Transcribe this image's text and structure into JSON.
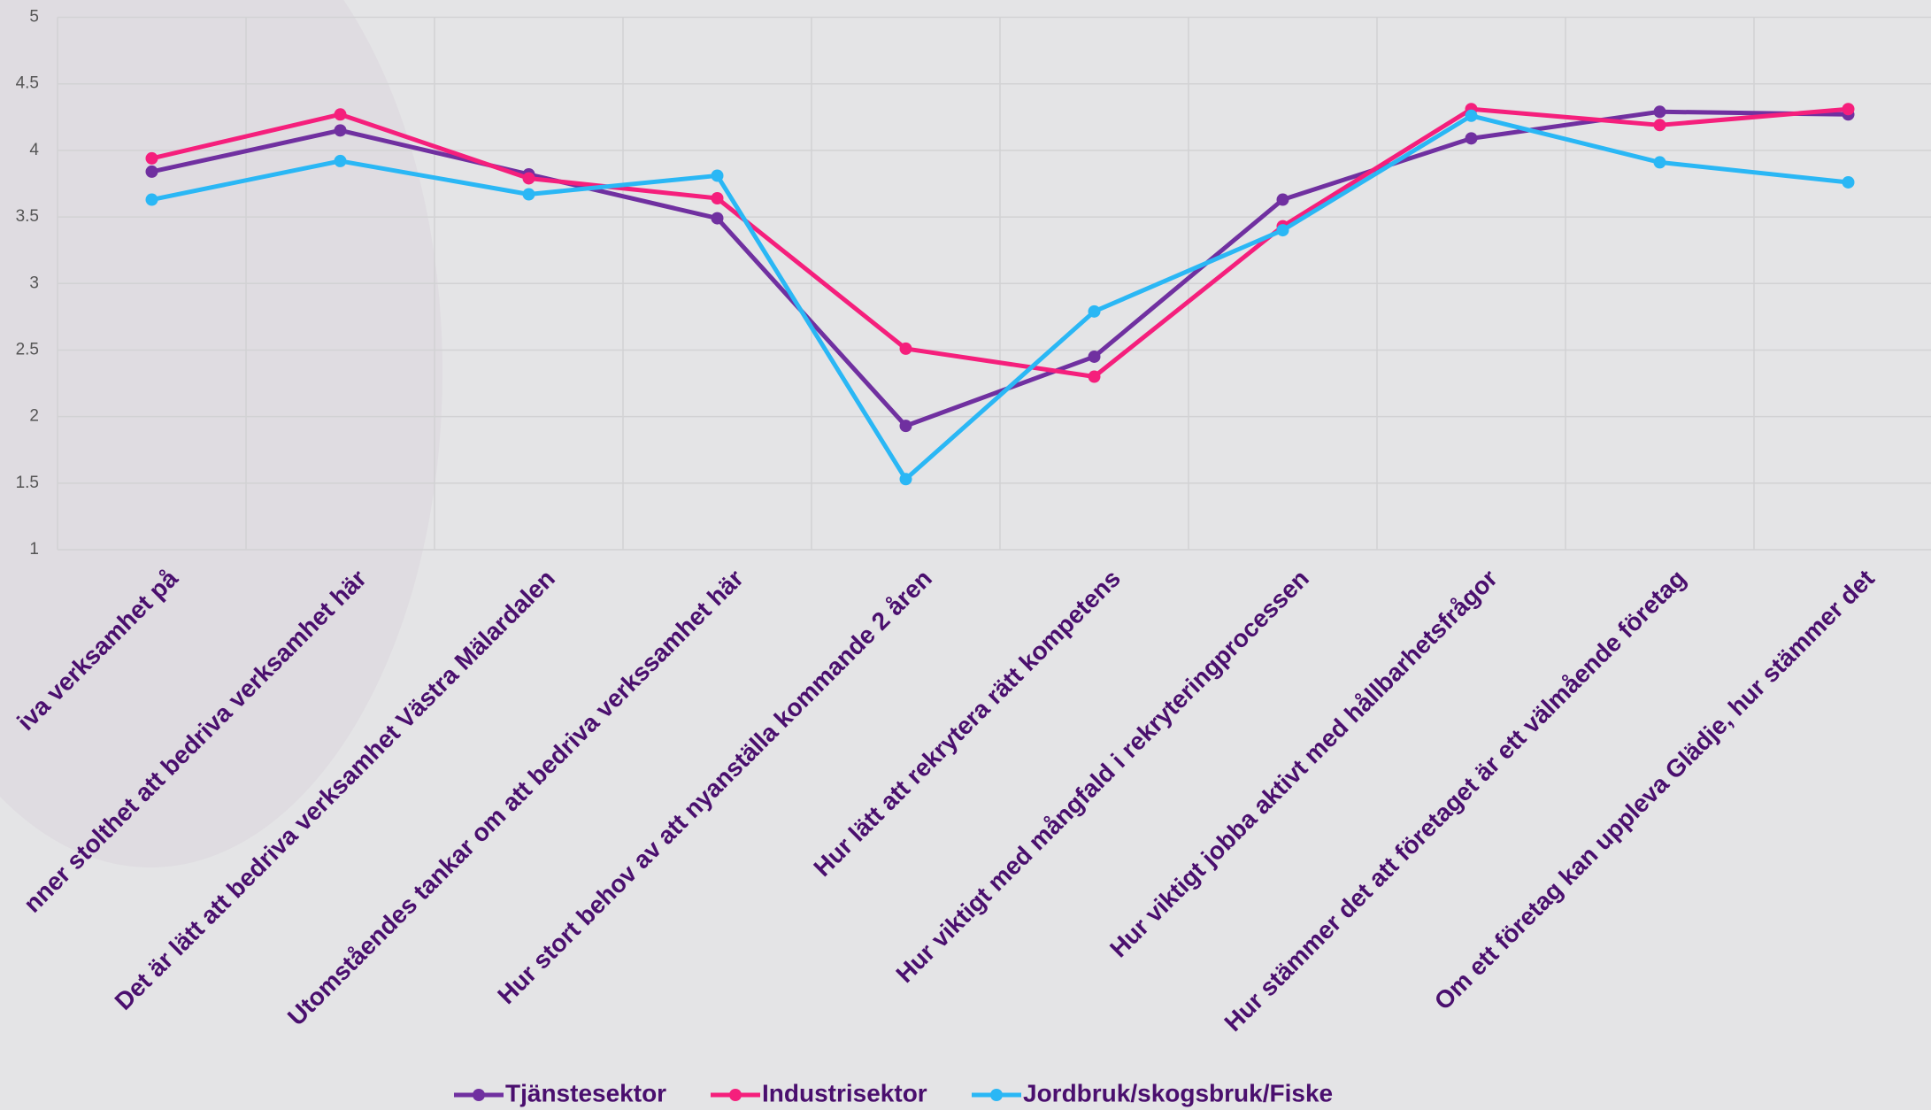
{
  "chart_data": {
    "type": "line",
    "categories": [
      "iva verksamhet på",
      "nner stolthet att bedriva verksamhet här",
      "Det är lätt att bedriva verksamhet Västra Mälardalen",
      "Utomståendes tankar om att bedriva verkssamhet här",
      "Hur stort behov av att nyanställa kommande 2 åren",
      "Hur lätt att rekrytera rätt kompetens",
      "Hur viktigt med mångfald i rekryteringprocessen",
      "Hur viktigt jobba aktivt med hållbarhetsfrågor",
      "Hur stämmer det att företaget är ett välmående företag",
      "Om ett företag kan uppleva Glädje, hur stämmer det"
    ],
    "series": [
      {
        "name": "Tjänstesektor",
        "color": "#7030a0",
        "values": [
          3.84,
          4.15,
          3.82,
          3.49,
          1.93,
          2.45,
          3.63,
          4.09,
          4.29,
          4.27
        ]
      },
      {
        "name": "Industrisektor",
        "color": "#f51f7c",
        "values": [
          3.94,
          4.27,
          3.79,
          3.64,
          2.51,
          2.3,
          3.43,
          4.31,
          4.19,
          4.31
        ]
      },
      {
        "name": "Jordbruk/skogsbruk/Fiske",
        "color": "#2ab7f5",
        "values": [
          3.63,
          3.92,
          3.67,
          3.81,
          1.53,
          2.79,
          3.4,
          4.26,
          3.91,
          3.76
        ]
      }
    ],
    "ylim": [
      1,
      5
    ],
    "yticks": [
      1,
      1.5,
      2,
      2.5,
      3,
      3.5,
      4,
      4.5,
      5
    ],
    "grid": true
  }
}
